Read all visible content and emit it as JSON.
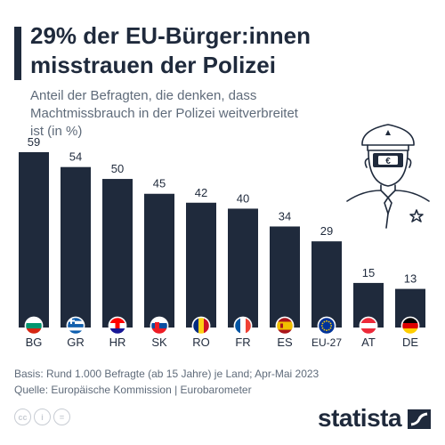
{
  "header": {
    "title": "29% der EU-Bürger:innen misstrauen der Polizei",
    "subtitle": "Anteil der Befragten, die denken, dass Machtmissbrauch in der Polizei weitverbreitet ist (in %)"
  },
  "chart_data": {
    "type": "bar",
    "title": "29% der EU-Bürger:innen misstrauen der Polizei",
    "subtitle": "Anteil der Befragten, die denken, dass Machtmissbrauch in der Polizei weitverbreitet ist (in %)",
    "categories": [
      "BG",
      "GR",
      "HR",
      "SK",
      "RO",
      "FR",
      "ES",
      "EU-27",
      "AT",
      "DE"
    ],
    "values": [
      59,
      54,
      50,
      45,
      42,
      40,
      34,
      29,
      15,
      13
    ],
    "flags": [
      "bulgaria-flag",
      "greece-flag",
      "croatia-flag",
      "slovakia-flag",
      "romania-flag",
      "france-flag",
      "spain-flag",
      "eu-flag",
      "austria-flag",
      "germany-flag"
    ],
    "ylim": [
      0,
      59
    ],
    "grid": false,
    "bar_color": "#1f2a3c"
  },
  "footer": {
    "basis": "Basis: Rund 1.000 Befragte (ab 15 Jahre) je Land; Apr-Mai 2023",
    "source": "Quelle: Europäische Kommission | Eurobarometer"
  },
  "license_icons": [
    "cc-icon",
    "person-icon",
    "equals-icon"
  ],
  "license_labels": [
    "cc",
    "i",
    "="
  ],
  "brand": {
    "name": "statista"
  },
  "illustration": {
    "badge_text": "€",
    "icon": "police-officer-icon"
  },
  "colors": {
    "accent": "#1f2a3c",
    "text_secondary": "#5f6b7a"
  }
}
